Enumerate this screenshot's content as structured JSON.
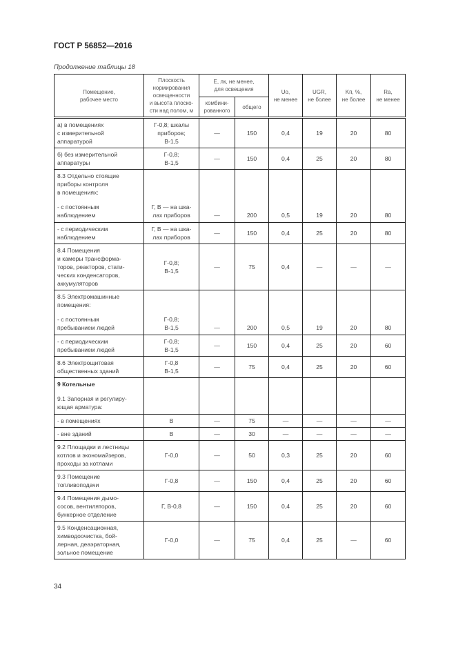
{
  "header": {
    "doc_title": "ГОСТ Р 56852—2016",
    "caption": "Продолжение таблицы 18"
  },
  "columns": {
    "room": [
      "Помещение,",
      "рабочее место"
    ],
    "plane": [
      "Плоскость",
      "нормирования",
      "освещенности",
      "и высота плоско-",
      "сти над полом, м"
    ],
    "e_group": [
      "E, лк, не менее,",
      "для освещения"
    ],
    "e_comb": [
      "комбини-",
      "рованного"
    ],
    "e_gen": [
      "общего"
    ],
    "uo": [
      "Uo,",
      "не менее"
    ],
    "ugr": [
      "UGR,",
      "не более"
    ],
    "kp": [
      "Kп, %,",
      "не более"
    ],
    "ra": [
      "Ra,",
      "не менее"
    ]
  },
  "rows": [
    {
      "room": [
        "а) в помещениях",
        "с измерительной",
        "аппаратурой"
      ],
      "plane": [
        "Г-0,8; шкалы",
        "приборов;",
        "В-1,5"
      ],
      "vals": [
        "—",
        "150",
        "0,4",
        "19",
        "20",
        "80"
      ]
    },
    {
      "room": [
        "б) без измерительной",
        "аппаратуры"
      ],
      "plane": [
        "Г-0,8;",
        "В-1,5"
      ],
      "vals": [
        "—",
        "150",
        "0,4",
        "25",
        "20",
        "80"
      ]
    },
    {
      "head": [
        "8.3 Отдельно стоящие",
        "приборы контроля",
        "в помещениях:"
      ],
      "room": [
        "- с постоянным",
        "наблюдением"
      ],
      "plane": [
        "Г, В — на шка-",
        "лах приборов"
      ],
      "vals": [
        "—",
        "200",
        "0,5",
        "19",
        "20",
        "80"
      ]
    },
    {
      "room": [
        "- с периодическим",
        "наблюдением"
      ],
      "plane": [
        "Г, В — на шка-",
        "лах приборов"
      ],
      "vals": [
        "—",
        "150",
        "0,4",
        "25",
        "20",
        "80"
      ]
    },
    {
      "room": [
        "8.4 Помещения",
        "и камеры трансформа-",
        "торов, реакторов, стати-",
        "ческих конденсаторов,",
        "аккумуляторов"
      ],
      "plane": [
        "Г-0,8;",
        "В-1,5"
      ],
      "vals": [
        "—",
        "75",
        "0,4",
        "—",
        "—",
        "—"
      ]
    },
    {
      "head": [
        "8.5 Электромашинные",
        "помещения:"
      ],
      "room": [
        "- с постоянным",
        "пребыванием людей"
      ],
      "plane": [
        "Г-0,8;",
        "В-1,5"
      ],
      "vals": [
        "—",
        "200",
        "0,5",
        "19",
        "20",
        "80"
      ]
    },
    {
      "room": [
        "- с периодическим",
        "пребыванием людей"
      ],
      "plane": [
        "Г-0,8;",
        "В-1,5"
      ],
      "vals": [
        "—",
        "150",
        "0,4",
        "25",
        "20",
        "60"
      ]
    },
    {
      "room": [
        "8.6 Электрощитовая",
        "общественных зданий"
      ],
      "plane": [
        "Г-0,8",
        "В-1,5"
      ],
      "vals": [
        "—",
        "75",
        "0,4",
        "25",
        "20",
        "60"
      ]
    },
    {
      "section": "9 Котельные",
      "room": [
        "9.1 Запорная и регулиру-",
        "ющая арматура:"
      ],
      "plane": [],
      "vals": [
        "",
        "",
        "",
        "",
        "",
        ""
      ]
    },
    {
      "room": [
        "- в помещениях"
      ],
      "plane": [
        "В"
      ],
      "vals": [
        "—",
        "75",
        "—",
        "—",
        "—",
        "—"
      ]
    },
    {
      "room": [
        "- вне зданий"
      ],
      "plane": [
        "В"
      ],
      "vals": [
        "—",
        "30",
        "—",
        "—",
        "—",
        "—"
      ]
    },
    {
      "room": [
        "9.2 Площадки и лестницы",
        "котлов и экономайзеров,",
        "проходы за котлами"
      ],
      "plane": [
        "Г-0,0"
      ],
      "vals": [
        "—",
        "50",
        "0,3",
        "25",
        "20",
        "60"
      ]
    },
    {
      "room": [
        "9.3 Помещение",
        "топливоподачи"
      ],
      "plane": [
        "Г-0,8"
      ],
      "vals": [
        "—",
        "150",
        "0,4",
        "25",
        "20",
        "60"
      ]
    },
    {
      "room": [
        "9.4 Помещения дымо-",
        "сосов, вентиляторов,",
        "бункерное отделение"
      ],
      "plane": [
        "Г, В-0,8"
      ],
      "vals": [
        "—",
        "150",
        "0,4",
        "25",
        "20",
        "60"
      ]
    },
    {
      "room": [
        "9.5 Конденсационная,",
        "химводоочистка, бой-",
        "лерная, деаэраторная,",
        "зольное помещение"
      ],
      "plane": [
        "Г-0,0"
      ],
      "vals": [
        "—",
        "75",
        "0,4",
        "25",
        "—",
        "60"
      ]
    }
  ],
  "footer": {
    "page_number": "34"
  }
}
